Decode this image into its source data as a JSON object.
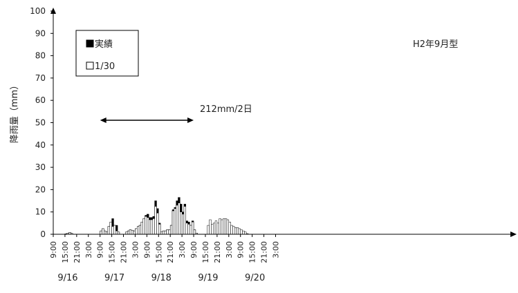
{
  "chart_data": {
    "type": "bar",
    "ylabel": "降雨量（mm）",
    "ylim": [
      0,
      100
    ],
    "yticks": [
      0,
      10,
      20,
      30,
      40,
      50,
      60,
      70,
      80,
      90,
      100
    ],
    "xtick_labels": [
      "9:00",
      "15:00",
      "21:00",
      "3:00",
      "9:00",
      "15:00",
      "21:00",
      "3:00",
      "9:00",
      "15:00",
      "21:00",
      "3:00",
      "9:00",
      "15:00",
      "21:00",
      "3:00",
      "9:00",
      "15:00",
      "21:00",
      "3:00"
    ],
    "date_labels": [
      "9/16",
      "9/17",
      "9/18",
      "9/19",
      "9/20"
    ],
    "interval_hours": 1,
    "start_time": "9/16 9:00",
    "legend": {
      "position": "top-left",
      "entries": [
        "実績",
        "1/30"
      ]
    },
    "annotation": {
      "text": "212mm/2日",
      "from": "9/17 9:00",
      "to": "9/19 9:00"
    },
    "pattern_label": "H2年9月型",
    "grid": false,
    "series": [
      {
        "name": "1/30",
        "color": "#ffffff",
        "values": [
          0,
          0,
          0,
          0,
          0,
          0,
          0.2,
          0.5,
          0.8,
          0.4,
          0,
          0,
          0,
          0,
          0,
          0,
          0,
          0,
          0,
          0,
          0,
          0,
          0,
          0,
          1.5,
          2.5,
          1.5,
          1,
          3.5,
          5.5,
          3.5,
          4,
          1.5,
          1,
          0,
          0,
          0,
          1,
          1.5,
          2,
          1.8,
          1.5,
          2.5,
          3.5,
          4,
          5.5,
          7,
          8,
          7.5,
          6.5,
          6.5,
          7,
          12.5,
          9.5,
          4.5,
          1,
          1.5,
          1.5,
          2,
          2,
          4,
          10.5,
          11.5,
          13,
          14,
          10,
          9,
          12.5,
          5,
          4.5,
          4,
          5.5,
          2,
          0.5,
          0,
          0,
          0,
          0,
          0,
          4,
          6.5,
          4.5,
          5,
          6,
          5,
          7,
          6.5,
          7,
          7,
          6.5,
          5.5,
          4,
          3.5,
          3,
          3,
          2.5,
          2,
          1.5,
          1,
          0.3,
          0,
          0,
          0,
          0,
          0,
          0,
          0,
          0,
          0,
          0,
          0,
          0,
          0,
          0,
          0,
          0,
          0,
          0,
          0,
          0,
          0,
          0,
          0,
          0,
          0,
          0,
          0,
          0,
          0,
          0,
          0,
          0,
          0,
          0,
          0,
          0,
          0,
          0,
          0,
          0,
          0,
          0,
          0,
          0,
          0,
          0,
          0,
          0,
          0,
          0,
          0,
          0,
          0,
          0
        ]
      },
      {
        "name": "実績",
        "color": "#000000",
        "values": [
          0,
          0,
          0,
          0,
          0,
          0,
          0.2,
          0.5,
          0.8,
          0.4,
          0,
          0,
          0,
          0,
          0,
          0,
          0,
          0,
          0,
          0,
          0,
          0,
          0,
          0,
          1.5,
          2.5,
          1.5,
          1,
          3.5,
          5.5,
          7,
          4,
          4,
          1,
          0,
          0,
          0,
          1,
          1.5,
          2,
          1.8,
          1.5,
          2.5,
          3.5,
          4,
          5.5,
          7,
          8.5,
          9,
          7.5,
          7.5,
          8,
          15,
          11.5,
          5,
          1,
          1.5,
          1.5,
          2,
          2,
          4,
          11,
          12,
          15,
          16.5,
          13.5,
          10,
          13.5,
          6,
          5.5,
          4,
          6,
          2,
          0.5,
          0,
          0,
          0,
          0,
          0,
          0,
          0,
          0,
          0,
          0,
          0,
          0,
          0,
          0,
          0,
          0,
          0,
          0,
          0,
          0,
          0,
          0,
          0,
          0,
          0,
          0,
          0,
          0,
          0,
          0,
          0,
          0,
          0,
          0,
          0,
          0,
          0,
          0,
          0,
          0,
          0,
          0,
          0,
          0,
          0,
          0,
          0,
          0,
          0,
          0,
          0,
          0,
          0,
          0,
          0,
          0,
          0,
          0,
          0,
          0,
          0,
          0,
          0,
          0,
          0,
          0,
          0,
          0,
          0,
          0,
          0,
          0,
          0,
          0,
          0,
          0
        ]
      }
    ]
  }
}
